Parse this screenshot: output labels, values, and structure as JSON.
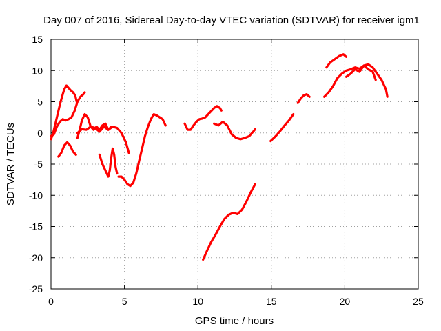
{
  "chart_data": {
    "type": "scatter",
    "title": "Day 007 of 2016, Sidereal Day-to-day VTEC variation (SDTVAR) for receiver igm1",
    "xlabel": "GPS time / hours",
    "ylabel": "SDTVAR / TECUs",
    "xlim": [
      0,
      25
    ],
    "ylim": [
      -25,
      15
    ],
    "xticks": [
      "0",
      "5",
      "10",
      "15",
      "20",
      "25"
    ],
    "yticks": [
      "-25",
      "-20",
      "-15",
      "-10",
      "-5",
      "0",
      "5",
      "10",
      "15"
    ],
    "grid": true,
    "marker_color": "#ff0000",
    "series": [
      {
        "x": [
          0.0,
          0.15,
          0.3,
          0.45,
          0.6,
          0.75,
          0.9,
          1.05,
          1.2,
          1.35,
          1.5,
          1.65,
          1.75
        ],
        "y": [
          -1.0,
          0.0,
          1.5,
          3.0,
          4.5,
          5.8,
          7.0,
          7.6,
          7.2,
          6.8,
          6.5,
          6.0,
          5.0
        ]
      },
      {
        "x": [
          0.0,
          0.2,
          0.4,
          0.6,
          0.8,
          1.0,
          1.2,
          1.4,
          1.6,
          1.8,
          2.0,
          2.2,
          2.3
        ],
        "y": [
          -0.5,
          -0.2,
          1.0,
          1.8,
          2.2,
          2.0,
          2.2,
          2.5,
          3.5,
          5.0,
          5.8,
          6.2,
          6.5
        ]
      },
      {
        "x": [
          0.5,
          0.7,
          0.9,
          1.1,
          1.3,
          1.5,
          1.7
        ],
        "y": [
          -3.8,
          -3.2,
          -2.0,
          -1.5,
          -2.0,
          -3.0,
          -3.5
        ]
      },
      {
        "x": [
          1.8,
          1.95,
          2.1,
          2.3,
          2.5,
          2.7,
          2.9,
          3.1,
          3.3,
          3.5,
          3.7,
          3.9,
          4.1
        ],
        "y": [
          -0.8,
          0.5,
          2.0,
          3.0,
          2.5,
          1.0,
          0.5,
          1.0,
          0.5,
          1.2,
          1.5,
          0.5,
          1.0
        ]
      },
      {
        "x": [
          1.8,
          2.1,
          2.4,
          2.7,
          3.0,
          3.3,
          3.6,
          3.9,
          4.2,
          4.5,
          4.8,
          5.1,
          5.3
        ],
        "y": [
          0.0,
          0.6,
          0.5,
          1.0,
          0.8,
          0.2,
          1.0,
          0.5,
          1.0,
          0.8,
          0.0,
          -1.5,
          -3.2
        ]
      },
      {
        "x": [
          3.3,
          3.5,
          3.7,
          3.9,
          4.0,
          4.1,
          4.2,
          4.3,
          4.4,
          4.5
        ],
        "y": [
          -3.5,
          -5.0,
          -6.0,
          -7.0,
          -6.0,
          -4.0,
          -2.5,
          -3.5,
          -5.5,
          -6.5
        ]
      },
      {
        "x": [
          4.6,
          4.8,
          5.0,
          5.2,
          5.4,
          5.6,
          5.8,
          6.0,
          6.2,
          6.4,
          6.6,
          6.8,
          7.0,
          7.2,
          7.4,
          7.6,
          7.8
        ],
        "y": [
          -7.0,
          -7.0,
          -7.5,
          -8.2,
          -8.5,
          -8.0,
          -6.5,
          -4.5,
          -2.5,
          -0.5,
          1.0,
          2.2,
          3.0,
          2.8,
          2.5,
          2.2,
          1.2
        ]
      },
      {
        "x": [
          9.1,
          9.3,
          9.5,
          9.7,
          9.9,
          10.1,
          10.3,
          10.5,
          10.7,
          10.9,
          11.1,
          11.3,
          11.5,
          11.6
        ],
        "y": [
          1.5,
          0.5,
          0.5,
          1.2,
          1.8,
          2.2,
          2.3,
          2.5,
          3.0,
          3.5,
          4.0,
          4.3,
          4.0,
          3.6
        ]
      },
      {
        "x": [
          11.1,
          11.4,
          11.7,
          12.0,
          12.3,
          12.6,
          12.9,
          13.2,
          13.5,
          13.8,
          13.9
        ],
        "y": [
          1.5,
          1.2,
          1.8,
          1.2,
          -0.2,
          -0.8,
          -1.0,
          -0.8,
          -0.5,
          0.3,
          0.6
        ]
      },
      {
        "x": [
          10.35,
          10.6,
          10.9,
          11.2,
          11.5,
          11.8,
          12.1,
          12.4,
          12.7,
          13.0,
          13.3,
          13.6,
          13.9
        ],
        "y": [
          -20.3,
          -19.0,
          -17.5,
          -16.3,
          -15.0,
          -13.8,
          -13.1,
          -12.8,
          -13.0,
          -12.3,
          -11.0,
          -9.5,
          -8.2
        ]
      },
      {
        "x": [
          14.95,
          15.3,
          15.6,
          15.9,
          16.2,
          16.5
        ],
        "y": [
          -1.3,
          -0.5,
          0.3,
          1.2,
          2.0,
          3.0
        ]
      },
      {
        "x": [
          16.8,
          17.0,
          17.2,
          17.4,
          17.6
        ],
        "y": [
          4.8,
          5.5,
          6.0,
          6.2,
          5.8
        ]
      },
      {
        "x": [
          18.75,
          19.0,
          19.3,
          19.6,
          19.9,
          20.1
        ],
        "y": [
          10.5,
          11.3,
          11.8,
          12.3,
          12.6,
          12.2
        ]
      },
      {
        "x": [
          18.6,
          18.9,
          19.2,
          19.5,
          19.8,
          20.1,
          20.4,
          20.7,
          21.0,
          21.3,
          21.6,
          21.9,
          22.2,
          22.5,
          22.8,
          22.9
        ],
        "y": [
          5.8,
          6.5,
          7.5,
          8.8,
          9.5,
          10.0,
          10.2,
          10.5,
          10.3,
          10.8,
          11.0,
          10.5,
          9.5,
          8.5,
          7.0,
          5.8
        ]
      },
      {
        "x": [
          20.1,
          20.4,
          20.7,
          21.0,
          21.3,
          21.6,
          21.9,
          22.1
        ],
        "y": [
          9.0,
          9.5,
          10.2,
          9.8,
          10.8,
          10.2,
          9.8,
          8.5
        ]
      }
    ]
  }
}
